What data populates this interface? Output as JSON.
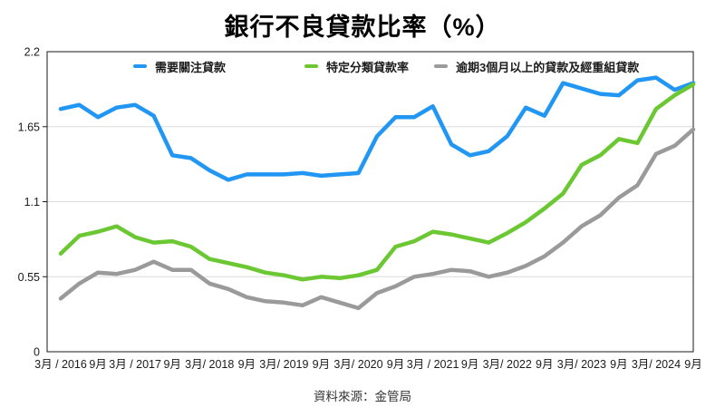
{
  "title": "銀行不良貸款比率（%）",
  "footer": {
    "source_label": "資料來源：金管局"
  },
  "colors": {
    "special_mention": "#2196f3",
    "classified": "#6bc832",
    "overdue_rescheduled": "#9a9a9a",
    "grid": "#dcdcdc",
    "border": "#1a1a1a"
  },
  "chart_data": {
    "type": "line",
    "title": "銀行不良貸款比率（%）",
    "xlabel": "",
    "ylabel": "",
    "ylim": [
      0,
      2.2
    ],
    "yticks": [
      0,
      0.55,
      1.1,
      1.65,
      2.2
    ],
    "grid": true,
    "legend_position": "top",
    "x_labels": [
      "3月 / 2016",
      "9月",
      "3月 / 2017",
      "9月",
      "3月/ 2018",
      "9月",
      "3月/ 2019",
      "9月",
      "3月/ 2020",
      "9月",
      "3月 / 2021",
      "9月",
      "3月/ 2022",
      "9月",
      "3月/ 2023",
      "9月",
      "3月/ 2024",
      "9月"
    ],
    "x_frequency": "quarterly",
    "series": [
      {
        "name": "需要關注貸款",
        "color": "#2196f3",
        "values": [
          1.78,
          1.81,
          1.72,
          1.79,
          1.81,
          1.73,
          1.44,
          1.42,
          1.33,
          1.26,
          1.3,
          1.3,
          1.3,
          1.31,
          1.29,
          1.3,
          1.31,
          1.58,
          1.72,
          1.72,
          1.8,
          1.52,
          1.44,
          1.47,
          1.58,
          1.79,
          1.73,
          1.97,
          1.93,
          1.89,
          1.88,
          1.99,
          2.01,
          1.92,
          1.97
        ]
      },
      {
        "name": "特定分類貸款率",
        "color": "#6bc832",
        "values": [
          0.72,
          0.85,
          0.88,
          0.92,
          0.84,
          0.8,
          0.81,
          0.77,
          0.68,
          0.65,
          0.62,
          0.58,
          0.56,
          0.53,
          0.55,
          0.54,
          0.56,
          0.6,
          0.77,
          0.81,
          0.88,
          0.86,
          0.83,
          0.8,
          0.87,
          0.95,
          1.05,
          1.16,
          1.37,
          1.44,
          1.56,
          1.53,
          1.78,
          1.88,
          1.96
        ]
      },
      {
        "name": "逾期3個月以上的貸款及經重組貸款",
        "color": "#9a9a9a",
        "values": [
          0.39,
          0.5,
          0.58,
          0.57,
          0.6,
          0.66,
          0.6,
          0.6,
          0.5,
          0.46,
          0.4,
          0.37,
          0.36,
          0.34,
          0.4,
          0.36,
          0.32,
          0.43,
          0.48,
          0.55,
          0.57,
          0.6,
          0.59,
          0.55,
          0.58,
          0.63,
          0.7,
          0.8,
          0.92,
          1.0,
          1.13,
          1.22,
          1.45,
          1.51,
          1.63
        ]
      }
    ]
  }
}
